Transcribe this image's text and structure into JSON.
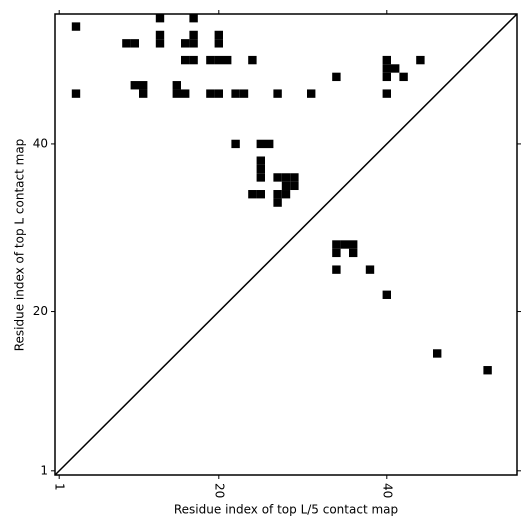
{
  "chart_data": {
    "type": "scatter",
    "marker": "square",
    "xlabel": "Residue index of top L/5 contact map",
    "ylabel": "Residue index of top L contact map",
    "x": [
      3,
      13,
      17,
      9,
      10,
      13,
      13,
      16,
      17,
      17,
      20,
      20,
      16,
      17,
      19,
      20,
      21,
      24,
      34,
      40,
      40,
      40,
      41,
      42,
      44,
      3,
      10,
      11,
      11,
      15,
      15,
      16,
      19,
      20,
      22,
      23,
      27,
      31,
      40,
      22,
      25,
      26,
      25,
      25,
      25,
      27,
      28,
      29,
      28,
      29,
      24,
      25,
      27,
      28,
      27,
      34,
      35,
      36,
      34,
      36,
      34,
      38,
      40,
      46,
      52
    ],
    "y": [
      54,
      55,
      55,
      52,
      52,
      53,
      52,
      52,
      53,
      52,
      53,
      52,
      50,
      50,
      50,
      50,
      50,
      50,
      48,
      50,
      49,
      48,
      49,
      48,
      50,
      46,
      47,
      47,
      46,
      47,
      46,
      46,
      46,
      46,
      46,
      46,
      46,
      46,
      46,
      40,
      40,
      40,
      38,
      37,
      36,
      36,
      36,
      36,
      35,
      35,
      34,
      34,
      34,
      34,
      33,
      28,
      28,
      28,
      27,
      27,
      25,
      25,
      22,
      15,
      13
    ],
    "color": "#000000",
    "diagonal": true,
    "xlim": [
      0.5,
      55.5
    ],
    "ylim": [
      0.5,
      55.5
    ],
    "xticks": [
      1,
      20,
      40
    ],
    "yticks": [
      1,
      20,
      40
    ]
  }
}
